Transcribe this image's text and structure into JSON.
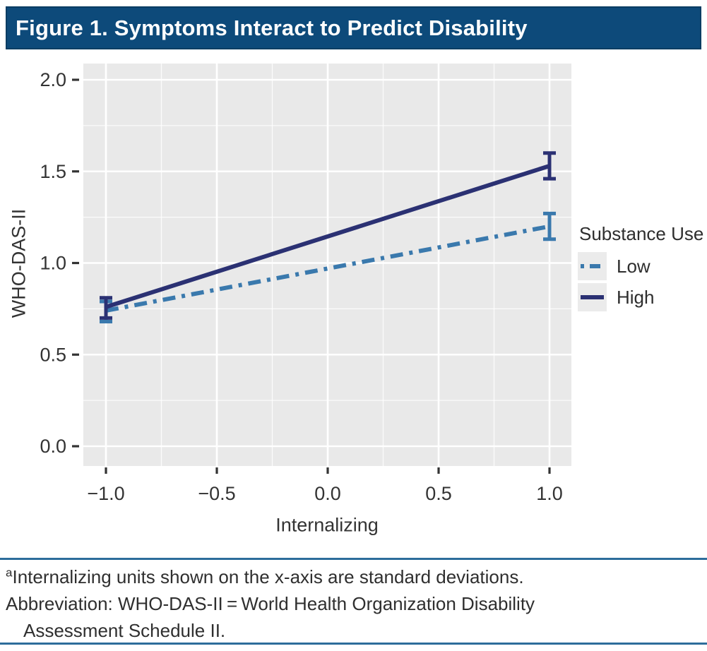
{
  "header": {
    "title": "Figure 1. Symptoms Interact to Predict Disability"
  },
  "chart_data": {
    "type": "line",
    "title": "",
    "xlabel": "Internalizing",
    "ylabel": "WHO-DAS-II",
    "xlim": [
      -1.1,
      1.1
    ],
    "ylim": [
      -0.11,
      2.09
    ],
    "xticks": [
      -1.0,
      -0.5,
      0.0,
      0.5,
      1.0
    ],
    "yticks": [
      0.0,
      0.5,
      1.0,
      1.5,
      2.0
    ],
    "xtick_labels": [
      "−1.0",
      "−0.5",
      "0.0",
      "0.5",
      "1.0"
    ],
    "ytick_labels": [
      "0.0",
      "0.5",
      "1.0",
      "1.5",
      "2.0"
    ],
    "grid": "white major and minor gridlines on gray panel",
    "legend_title": "Substance Use",
    "legend_position": "right",
    "series": [
      {
        "name": "Low",
        "style": "dash-dot",
        "color": "#3a79ad",
        "points": [
          {
            "x": -1.0,
            "y": 0.74,
            "ci": [
              0.68,
              0.79
            ]
          },
          {
            "x": 1.0,
            "y": 1.2,
            "ci": [
              1.13,
              1.27
            ]
          }
        ]
      },
      {
        "name": "High",
        "style": "solid",
        "color": "#2b3173",
        "points": [
          {
            "x": -1.0,
            "y": 0.76,
            "ci": [
              0.7,
              0.81
            ]
          },
          {
            "x": 1.0,
            "y": 1.53,
            "ci": [
              1.46,
              1.6
            ]
          }
        ]
      }
    ]
  },
  "footnotes": {
    "note_marker": "a",
    "note_text": "Internalizing units shown on the x-axis are standard deviations.",
    "abbreviation_line1": "Abbreviation: WHO-DAS-II = World Health Organization Disability",
    "abbreviation_line2": "Assessment Schedule II."
  },
  "colors": {
    "header_bg": "#0d4a7a",
    "header_border": "#0a3d63",
    "panel_bg": "#e9e9e9",
    "gridline": "#ffffff",
    "tick_text": "#333333",
    "rule": "#2d6d9b",
    "low_line": "#3a79ad",
    "high_line": "#2b3173"
  }
}
